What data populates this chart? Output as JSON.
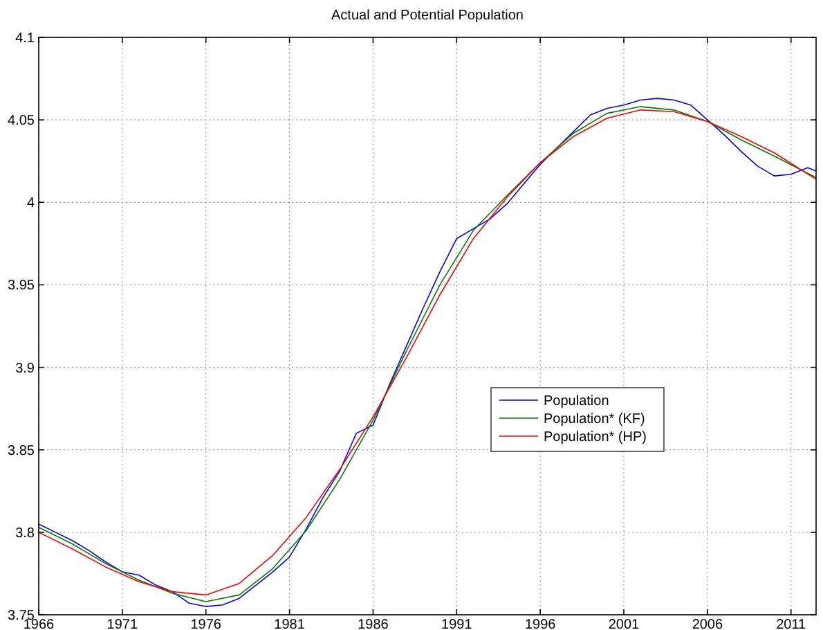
{
  "chart_data": {
    "type": "line",
    "title": "Actual and Potential Population",
    "xlim": [
      1966,
      2012.5
    ],
    "xticks": [
      1966,
      1971,
      1976,
      1981,
      1986,
      1991,
      1996,
      2001,
      2006,
      2011
    ],
    "ylim": [
      3.75,
      4.1
    ],
    "yticks": [
      3.75,
      3.8,
      3.85,
      3.9,
      3.95,
      4,
      4.05,
      4.1
    ],
    "grid": true,
    "legend": "right",
    "line_style": "solid",
    "marker": "none",
    "series": [
      {
        "name": "Population",
        "color": "#0000ff",
        "x": [
          1966,
          1967,
          1968,
          1969,
          1970,
          1971,
          1972,
          1973,
          1974,
          1975,
          1976,
          1977,
          1978,
          1979,
          1980,
          1981,
          1982,
          1983,
          1984,
          1985,
          1986,
          1987,
          1988,
          1989,
          1990,
          1991,
          1992,
          1993,
          1994,
          1995,
          1996,
          1997,
          1998,
          1999,
          2000,
          2001,
          2002,
          2003,
          2004,
          2005,
          2006,
          2007,
          2008,
          2009,
          2010,
          2011,
          2012,
          2012.5
        ],
        "values": [
          3.805,
          3.8,
          3.795,
          3.789,
          3.782,
          3.776,
          3.774,
          3.768,
          3.764,
          3.757,
          3.755,
          3.756,
          3.76,
          3.768,
          3.776,
          3.785,
          3.802,
          3.821,
          3.837,
          3.86,
          3.865,
          3.89,
          3.913,
          3.936,
          3.958,
          3.978,
          3.984,
          3.99,
          3.999,
          4.011,
          4.023,
          4.033,
          4.043,
          4.053,
          4.057,
          4.059,
          4.062,
          4.063,
          4.062,
          4.059,
          4.05,
          4.041,
          4.031,
          4.022,
          4.016,
          4.017,
          4.021,
          4.019
        ]
      },
      {
        "name": "Population* (KF)",
        "color": "#008000",
        "x": [
          1966,
          1968,
          1970,
          1972,
          1974,
          1976,
          1978,
          1980,
          1982,
          1984,
          1986,
          1988,
          1990,
          1992,
          1994,
          1996,
          1998,
          2000,
          2002,
          2004,
          2006,
          2008,
          2010,
          2012.5
        ],
        "values": [
          3.803,
          3.793,
          3.781,
          3.771,
          3.763,
          3.758,
          3.762,
          3.778,
          3.801,
          3.832,
          3.868,
          3.91,
          3.95,
          3.983,
          4.004,
          4.024,
          4.042,
          4.054,
          4.058,
          4.056,
          4.049,
          4.038,
          4.028,
          4.015
        ]
      },
      {
        "name": "Population* (HP)",
        "color": "#ff0000",
        "x": [
          1966,
          1968,
          1970,
          1972,
          1974,
          1976,
          1978,
          1980,
          1982,
          1984,
          1986,
          1988,
          1990,
          1992,
          1994,
          1996,
          1998,
          2000,
          2002,
          2004,
          2006,
          2008,
          2010,
          2012.5
        ],
        "values": [
          3.8,
          3.79,
          3.779,
          3.77,
          3.764,
          3.762,
          3.769,
          3.786,
          3.809,
          3.838,
          3.87,
          3.906,
          3.944,
          3.978,
          4.003,
          4.024,
          4.04,
          4.051,
          4.056,
          4.055,
          4.049,
          4.04,
          4.03,
          4.014
        ]
      }
    ]
  }
}
